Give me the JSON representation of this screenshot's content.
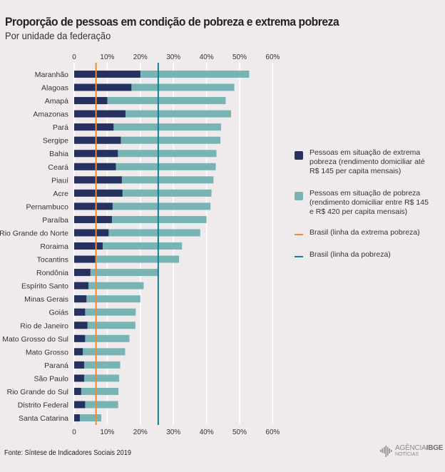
{
  "header": {
    "title": "Proporção de pessoas em condição de pobreza e extrema pobreza",
    "subtitle": "Por unidade da federação"
  },
  "colors": {
    "background": "#efebec",
    "extreme_poverty": "#263160",
    "poverty": "#78b4b4",
    "extreme_line": "#f08a30",
    "poverty_line": "#0e8090",
    "grid": "#ffffff"
  },
  "legend": {
    "items": [
      {
        "label": "Pessoas em situação de extrema pobreza (rendimento domiciliar até R$ 145 per capita mensais)",
        "type": "box",
        "color": "#263160"
      },
      {
        "label": "Pessoas em situação de pobreza (rendimento domiciliar entre R$ 145 e R$ 420 per capita mensais)",
        "type": "box",
        "color": "#78b4b4"
      },
      {
        "label": "Brasil (linha da extrema pobreza)",
        "type": "line",
        "color": "#f08a30"
      },
      {
        "label": "Brasil (linha da pobreza)",
        "type": "line",
        "color": "#0e8090"
      }
    ]
  },
  "footer": {
    "source": "Fonte: Síntese de Indicadores Sociais 2019",
    "logo_main_light": "AGÊNCIA",
    "logo_main_bold": "IBGE",
    "logo_sub": "NOTÍCIAS"
  },
  "chart_data": {
    "type": "bar",
    "orientation": "horizontal",
    "stacked": false,
    "title": "Proporção de pessoas em condição de pobreza e extrema pobreza",
    "subtitle": "Por unidade da federação",
    "xlabel": "",
    "ylabel": "",
    "xlim": [
      0,
      60
    ],
    "xticks": [
      0,
      10,
      20,
      30,
      40,
      50,
      60
    ],
    "xtick_labels": [
      "0",
      "10%",
      "20%",
      "30%",
      "40%",
      "50%",
      "60%"
    ],
    "xticks_top_and_bottom": true,
    "grid": true,
    "legend_position": "right",
    "categories": [
      "Maranhão",
      "Alagoas",
      "Amapá",
      "Amazonas",
      "Pará",
      "Sergipe",
      "Bahia",
      "Ceará",
      "Piauí",
      "Acre",
      "Pernambuco",
      "Paraíba",
      "Rio Grande do Norte",
      "Roraima",
      "Tocantins",
      "Rondônia",
      "Espírito Santo",
      "Minas Gerais",
      "Goiás",
      "Rio de Janeiro",
      "Mato Grosso do Sul",
      "Mato Grosso",
      "Paraná",
      "São Paulo",
      "Rio Grande do Sul",
      "Distrito Federal",
      "Santa Catarina"
    ],
    "series": [
      {
        "name": "Pessoas em situação de pobreza (rendimento domiciliar entre R$ 145 e R$ 420 per capita mensais)",
        "values": [
          52.9,
          48.4,
          45.8,
          47.4,
          44.4,
          44.2,
          43.0,
          42.8,
          42.1,
          41.5,
          41.2,
          40.0,
          38.1,
          32.6,
          31.7,
          25.2,
          21.0,
          20.0,
          18.6,
          18.5,
          16.7,
          15.4,
          13.9,
          13.6,
          13.4,
          13.3,
          8.2
        ]
      },
      {
        "name": "Pessoas em situação de extrema pobreza (rendimento domiciliar até R$ 145 per capita mensais)",
        "values": [
          20.0,
          17.3,
          10.0,
          15.5,
          11.9,
          14.1,
          13.2,
          12.6,
          14.4,
          14.6,
          11.6,
          11.4,
          10.4,
          8.6,
          6.7,
          4.9,
          4.3,
          3.7,
          3.3,
          4.0,
          3.3,
          2.6,
          3.0,
          3.0,
          2.1,
          3.3,
          1.7
        ]
      }
    ],
    "reference_lines": [
      {
        "name": "Brasil (linha da extrema pobreza)",
        "value": 6.6
      },
      {
        "name": "Brasil (linha da pobreza)",
        "value": 25.4
      }
    ],
    "unit": "%"
  }
}
